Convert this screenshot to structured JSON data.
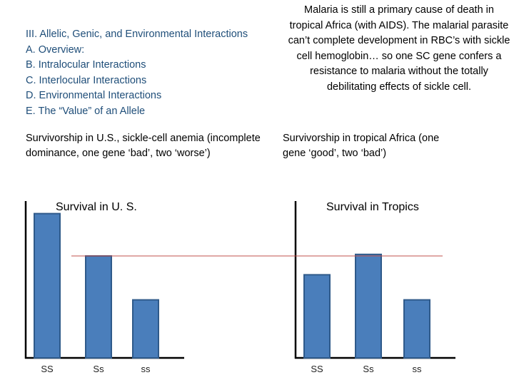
{
  "outline": {
    "heading": "III. Allelic, Genic, and Environmental Interactions",
    "items": [
      "A. Overview:",
      "B. Intralocular Interactions",
      "C. Interlocular Interactions",
      "D. Environmental Interactions",
      "E. The “Value” of an Allele"
    ]
  },
  "note": "Malaria is still a primary cause of death in tropical Africa (with AIDS).  The malarial parasite can’t complete development in RBC’s with sickle cell hemoglobin… so one SC gene confers a resistance to malaria without the totally debilitating effects of sickle cell.",
  "subheads": {
    "left": "Survivorship in U.S., sickle-cell anemia (incomplete dominance, one gene ‘bad’, two ‘worse’)",
    "right": "Survivorship in tropical Africa (one gene ‘good’, two ‘bad’)"
  },
  "colors": {
    "bar": "#4a7ebb",
    "bar_border": "#2f5a8a",
    "reference_line": "#c0504d",
    "outline_text": "#1f4e79"
  },
  "chart_data": [
    {
      "type": "bar",
      "title": "Survival in U. S.",
      "categories": [
        "SS",
        "Ss",
        "ss"
      ],
      "values": [
        0.92,
        0.65,
        0.37
      ],
      "ylim": [
        0,
        1
      ]
    },
    {
      "type": "bar",
      "title": "Survival in Tropics",
      "categories": [
        "SS",
        "Ss",
        "ss"
      ],
      "values": [
        0.53,
        0.66,
        0.37
      ],
      "ylim": [
        0,
        1
      ]
    }
  ]
}
